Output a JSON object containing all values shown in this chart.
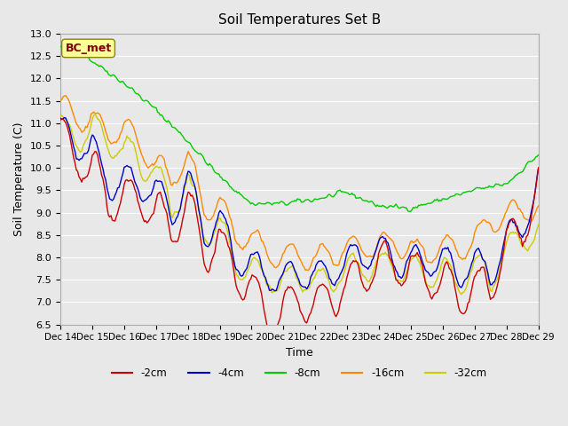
{
  "title": "Soil Temperatures Set B",
  "xlabel": "Time",
  "ylabel": "Soil Temperature (C)",
  "ylim": [
    6.5,
    13.0
  ],
  "yticks": [
    6.5,
    7.0,
    7.5,
    8.0,
    8.5,
    9.0,
    9.5,
    10.0,
    10.5,
    11.0,
    11.5,
    12.0,
    12.5,
    13.0
  ],
  "xtick_labels": [
    "Dec 14",
    "Dec 15",
    "Dec 16",
    "Dec 17",
    "Dec 18",
    "Dec 19",
    "Dec 20",
    "Dec 21",
    "Dec 22",
    "Dec 23",
    "Dec 24",
    "Dec 25",
    "Dec 26",
    "Dec 27",
    "Dec 28",
    "Dec 29"
  ],
  "colors": {
    "-2cm": "#cc0000",
    "-4cm": "#0000cc",
    "-8cm": "#00cc00",
    "-16cm": "#ff8800",
    "-32cm": "#cccc00"
  },
  "legend_labels": [
    "-2cm",
    "-4cm",
    "-8cm",
    "-16cm",
    "-32cm"
  ],
  "bc_met_label": "BC_met",
  "background_color": "#e8e8e8",
  "plot_bg_color": "#e8e8e8",
  "grid_color": "#ffffff",
  "annotation_box_color": "#ffff99",
  "annotation_text_color": "#800000",
  "n_points": 360
}
